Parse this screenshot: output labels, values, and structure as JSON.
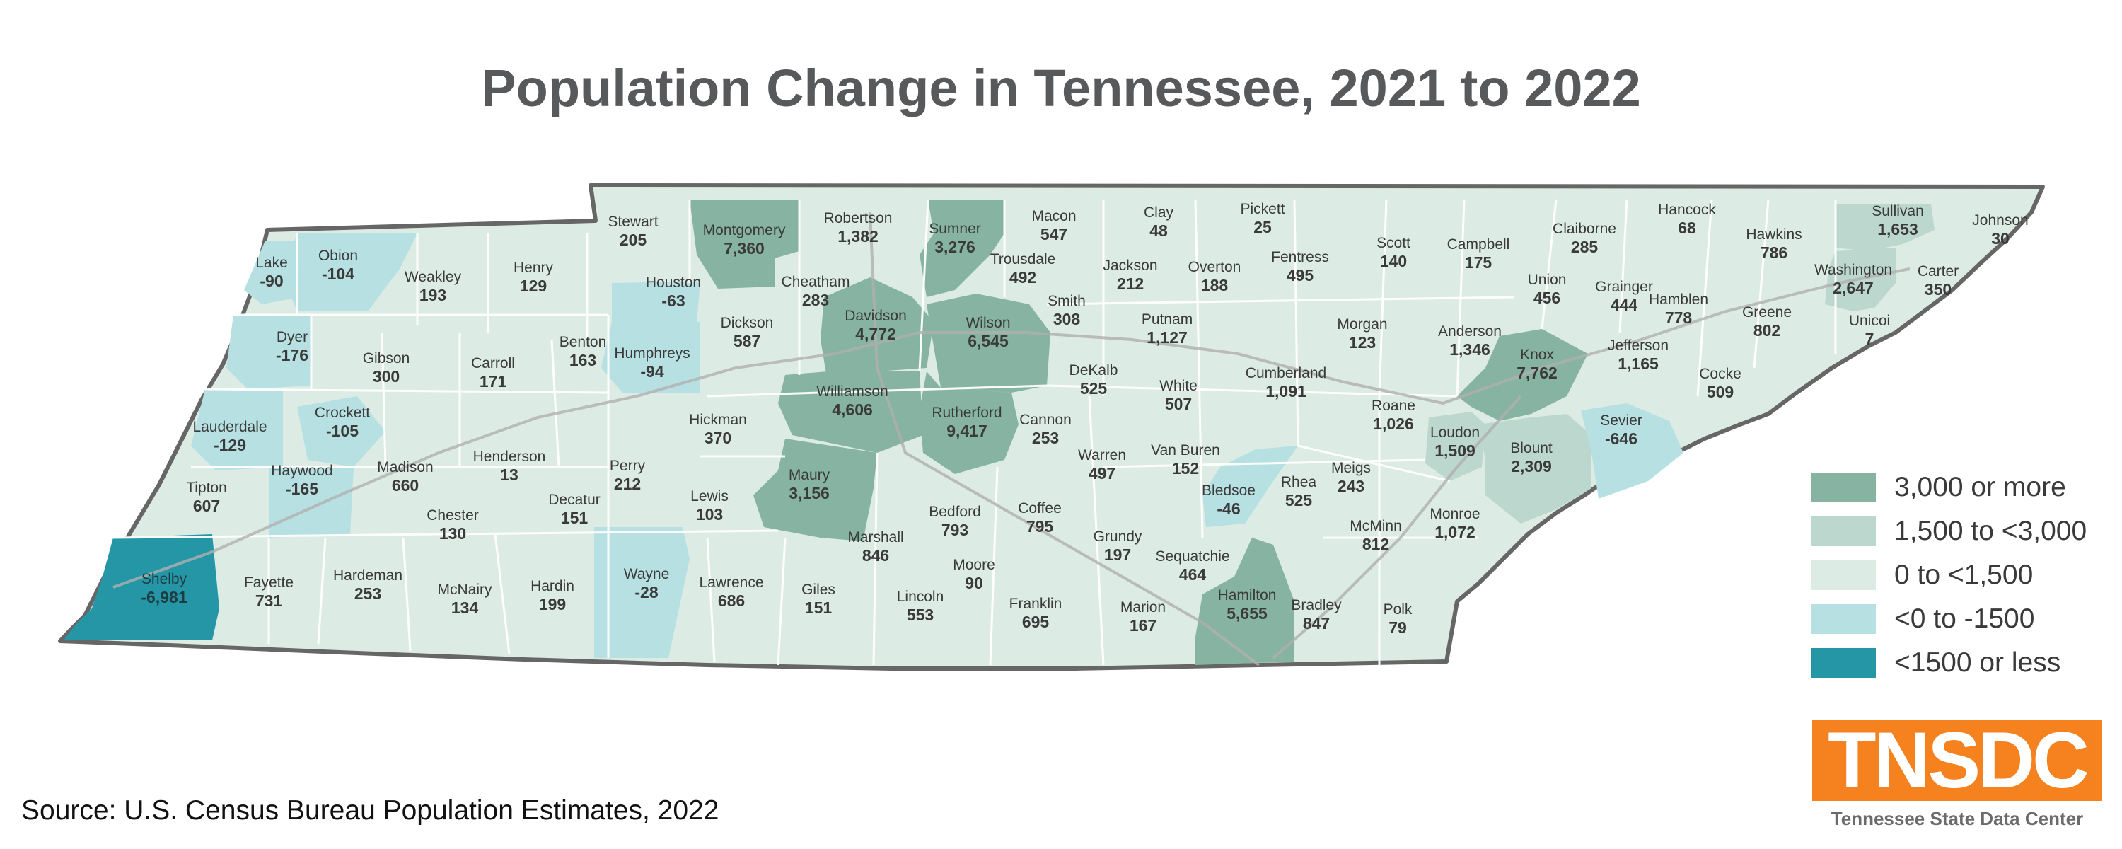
{
  "title": "Population Change in Tennessee, 2021 to 2022",
  "source": "Source:  U.S. Census Bureau Population Estimates, 2022",
  "logo": {
    "text": "TNSDC",
    "caption": "Tennessee State Data Center",
    "color": "#f5821f"
  },
  "legend": [
    {
      "label": "3,000 or more",
      "color": "#86b3a2"
    },
    {
      "label": "1,500 to <3,000",
      "color": "#bcd7cd"
    },
    {
      "label": "0 to <1,500",
      "color": "#dcebe4"
    },
    {
      "label": "<0 to -1500",
      "color": "#b7e0e2"
    },
    {
      "label": "<1500 or less",
      "color": "#2496a6"
    }
  ],
  "counties": [
    {
      "name": "Lake",
      "value": "-90"
    },
    {
      "name": "Obion",
      "value": "-104"
    },
    {
      "name": "Weakley",
      "value": "193"
    },
    {
      "name": "Henry",
      "value": "129"
    },
    {
      "name": "Stewart",
      "value": "205"
    },
    {
      "name": "Montgomery",
      "value": "7,360"
    },
    {
      "name": "Robertson",
      "value": "1,382"
    },
    {
      "name": "Sumner",
      "value": "3,276"
    },
    {
      "name": "Macon",
      "value": "547"
    },
    {
      "name": "Clay",
      "value": "48"
    },
    {
      "name": "Pickett",
      "value": "25"
    },
    {
      "name": "Scott",
      "value": "140"
    },
    {
      "name": "Campbell",
      "value": "175"
    },
    {
      "name": "Claiborne",
      "value": "285"
    },
    {
      "name": "Hancock",
      "value": "68"
    },
    {
      "name": "Hawkins",
      "value": "786"
    },
    {
      "name": "Sullivan",
      "value": "1,653"
    },
    {
      "name": "Johnson",
      "value": "30"
    },
    {
      "name": "Dyer",
      "value": "-176"
    },
    {
      "name": "Gibson",
      "value": "300"
    },
    {
      "name": "Carroll",
      "value": "171"
    },
    {
      "name": "Benton",
      "value": "163"
    },
    {
      "name": "Houston",
      "value": "-63"
    },
    {
      "name": "Humphreys",
      "value": "-94"
    },
    {
      "name": "Dickson",
      "value": "587"
    },
    {
      "name": "Cheatham",
      "value": "283"
    },
    {
      "name": "Davidson",
      "value": "4,772"
    },
    {
      "name": "Wilson",
      "value": "6,545"
    },
    {
      "name": "Trousdale",
      "value": "492"
    },
    {
      "name": "Smith",
      "value": "308"
    },
    {
      "name": "Jackson",
      "value": "212"
    },
    {
      "name": "Overton",
      "value": "188"
    },
    {
      "name": "Fentress",
      "value": "495"
    },
    {
      "name": "Putnam",
      "value": "1,127"
    },
    {
      "name": "Morgan",
      "value": "123"
    },
    {
      "name": "Anderson",
      "value": "1,346"
    },
    {
      "name": "Union",
      "value": "456"
    },
    {
      "name": "Grainger",
      "value": "444"
    },
    {
      "name": "Hamblen",
      "value": "778"
    },
    {
      "name": "Greene",
      "value": "802"
    },
    {
      "name": "Washington",
      "value": "2,647"
    },
    {
      "name": "Carter",
      "value": "350"
    },
    {
      "name": "Unicoi",
      "value": "7"
    },
    {
      "name": "Lauderdale",
      "value": "-129"
    },
    {
      "name": "Crockett",
      "value": "-105"
    },
    {
      "name": "Haywood",
      "value": "-165"
    },
    {
      "name": "Madison",
      "value": "660"
    },
    {
      "name": "Henderson",
      "value": "13"
    },
    {
      "name": "Tipton",
      "value": "607"
    },
    {
      "name": "Chester",
      "value": "130"
    },
    {
      "name": "Decatur",
      "value": "151"
    },
    {
      "name": "Perry",
      "value": "212"
    },
    {
      "name": "Hickman",
      "value": "370"
    },
    {
      "name": "Lewis",
      "value": "103"
    },
    {
      "name": "Williamson",
      "value": "4,606"
    },
    {
      "name": "Rutherford",
      "value": "9,417"
    },
    {
      "name": "Cannon",
      "value": "253"
    },
    {
      "name": "DeKalb",
      "value": "525"
    },
    {
      "name": "White",
      "value": "507"
    },
    {
      "name": "Warren",
      "value": "497"
    },
    {
      "name": "Van Buren",
      "value": "152"
    },
    {
      "name": "Cumberland",
      "value": "1,091"
    },
    {
      "name": "Roane",
      "value": "1,026"
    },
    {
      "name": "Knox",
      "value": "7,762"
    },
    {
      "name": "Jefferson",
      "value": "1,165"
    },
    {
      "name": "Cocke",
      "value": "509"
    },
    {
      "name": "Sevier",
      "value": "-646"
    },
    {
      "name": "Blount",
      "value": "2,309"
    },
    {
      "name": "Loudon",
      "value": "1,509"
    },
    {
      "name": "Meigs",
      "value": "243"
    },
    {
      "name": "Rhea",
      "value": "525"
    },
    {
      "name": "Bledsoe",
      "value": "-46"
    },
    {
      "name": "Maury",
      "value": "3,156"
    },
    {
      "name": "Marshall",
      "value": "846"
    },
    {
      "name": "Bedford",
      "value": "793"
    },
    {
      "name": "Coffee",
      "value": "795"
    },
    {
      "name": "Grundy",
      "value": "197"
    },
    {
      "name": "Sequatchie",
      "value": "464"
    },
    {
      "name": "McMinn",
      "value": "812"
    },
    {
      "name": "Monroe",
      "value": "1,072"
    },
    {
      "name": "Shelby",
      "value": "-6,981"
    },
    {
      "name": "Fayette",
      "value": "731"
    },
    {
      "name": "Hardeman",
      "value": "253"
    },
    {
      "name": "McNairy",
      "value": "134"
    },
    {
      "name": "Hardin",
      "value": "199"
    },
    {
      "name": "Wayne",
      "value": "-28"
    },
    {
      "name": "Lawrence",
      "value": "686"
    },
    {
      "name": "Giles",
      "value": "151"
    },
    {
      "name": "Lincoln",
      "value": "553"
    },
    {
      "name": "Moore",
      "value": "90"
    },
    {
      "name": "Franklin",
      "value": "695"
    },
    {
      "name": "Marion",
      "value": "167"
    },
    {
      "name": "Hamilton",
      "value": "5,655"
    },
    {
      "name": "Bradley",
      "value": "847"
    },
    {
      "name": "Polk",
      "value": "79"
    }
  ]
}
